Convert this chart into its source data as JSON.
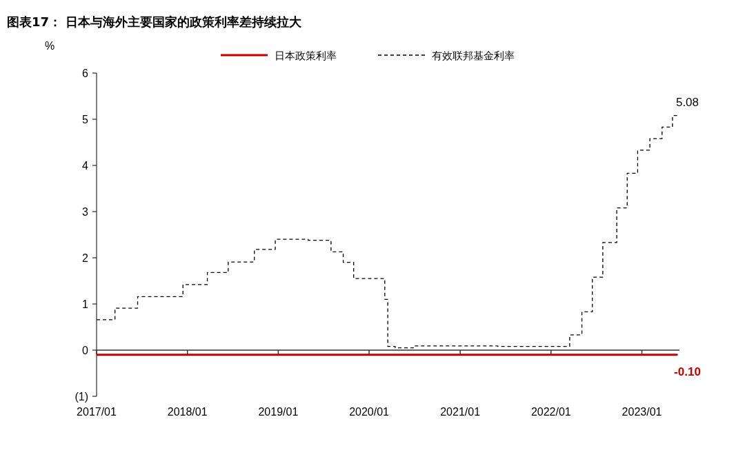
{
  "chart_data": {
    "type": "step",
    "title": "图表17：  日本与海外主要国家的政策利率差持续拉大",
    "ylabel": "%",
    "legend": "top",
    "xlim": [
      "2017-01",
      "2023-06"
    ],
    "xticks": [
      {
        "value": "2017-01",
        "label": "2017/01"
      },
      {
        "value": "2018-01",
        "label": "2018/01"
      },
      {
        "value": "2019-01",
        "label": "2019/01"
      },
      {
        "value": "2020-01",
        "label": "2020/01"
      },
      {
        "value": "2021-01",
        "label": "2021/01"
      },
      {
        "value": "2022-01",
        "label": "2022/01"
      },
      {
        "value": "2023-01",
        "label": "2023/01"
      }
    ],
    "ylim": [
      -1,
      6
    ],
    "yticks": [
      {
        "value": -1,
        "label": "(1)"
      },
      0,
      1,
      2,
      3,
      4,
      5,
      6
    ],
    "series": [
      {
        "name": "日本政策利率",
        "color": "#c00000",
        "line_style": "solid",
        "x": [
          "2017-01-01",
          "2023-05-25"
        ],
        "values": [
          -0.1,
          -0.1
        ],
        "value_labels": [
          null,
          "-0.10"
        ]
      },
      {
        "name": "有效联邦基金利率",
        "color": "#000000",
        "line_style": "dashed",
        "x": [
          "2017-01-01",
          "2017-03-16",
          "2017-06-15",
          "2017-12-14",
          "2018-03-22",
          "2018-06-14",
          "2018-09-27",
          "2018-12-20",
          "2019-05-01",
          "2019-08-01",
          "2019-09-19",
          "2019-10-31",
          "2020-03-04",
          "2020-03-16",
          "2020-04-15",
          "2020-07-01",
          "2021-06-01",
          "2021-09-01",
          "2022-03-17",
          "2022-05-05",
          "2022-06-16",
          "2022-07-28",
          "2022-09-22",
          "2022-11-03",
          "2022-12-15",
          "2023-02-02",
          "2023-03-23",
          "2023-05-04",
          "2023-05-25"
        ],
        "values": [
          0.66,
          0.91,
          1.16,
          1.42,
          1.68,
          1.91,
          2.18,
          2.4,
          2.38,
          2.13,
          1.9,
          1.55,
          1.1,
          0.08,
          0.05,
          0.09,
          0.08,
          0.08,
          0.33,
          0.83,
          1.58,
          2.33,
          3.08,
          3.83,
          4.33,
          4.58,
          4.83,
          5.08,
          5.08
        ],
        "value_labels": [
          null,
          null,
          null,
          null,
          null,
          null,
          null,
          null,
          null,
          null,
          null,
          null,
          null,
          null,
          null,
          null,
          null,
          null,
          null,
          null,
          null,
          null,
          null,
          null,
          null,
          null,
          null,
          null,
          "5.08"
        ]
      }
    ]
  }
}
